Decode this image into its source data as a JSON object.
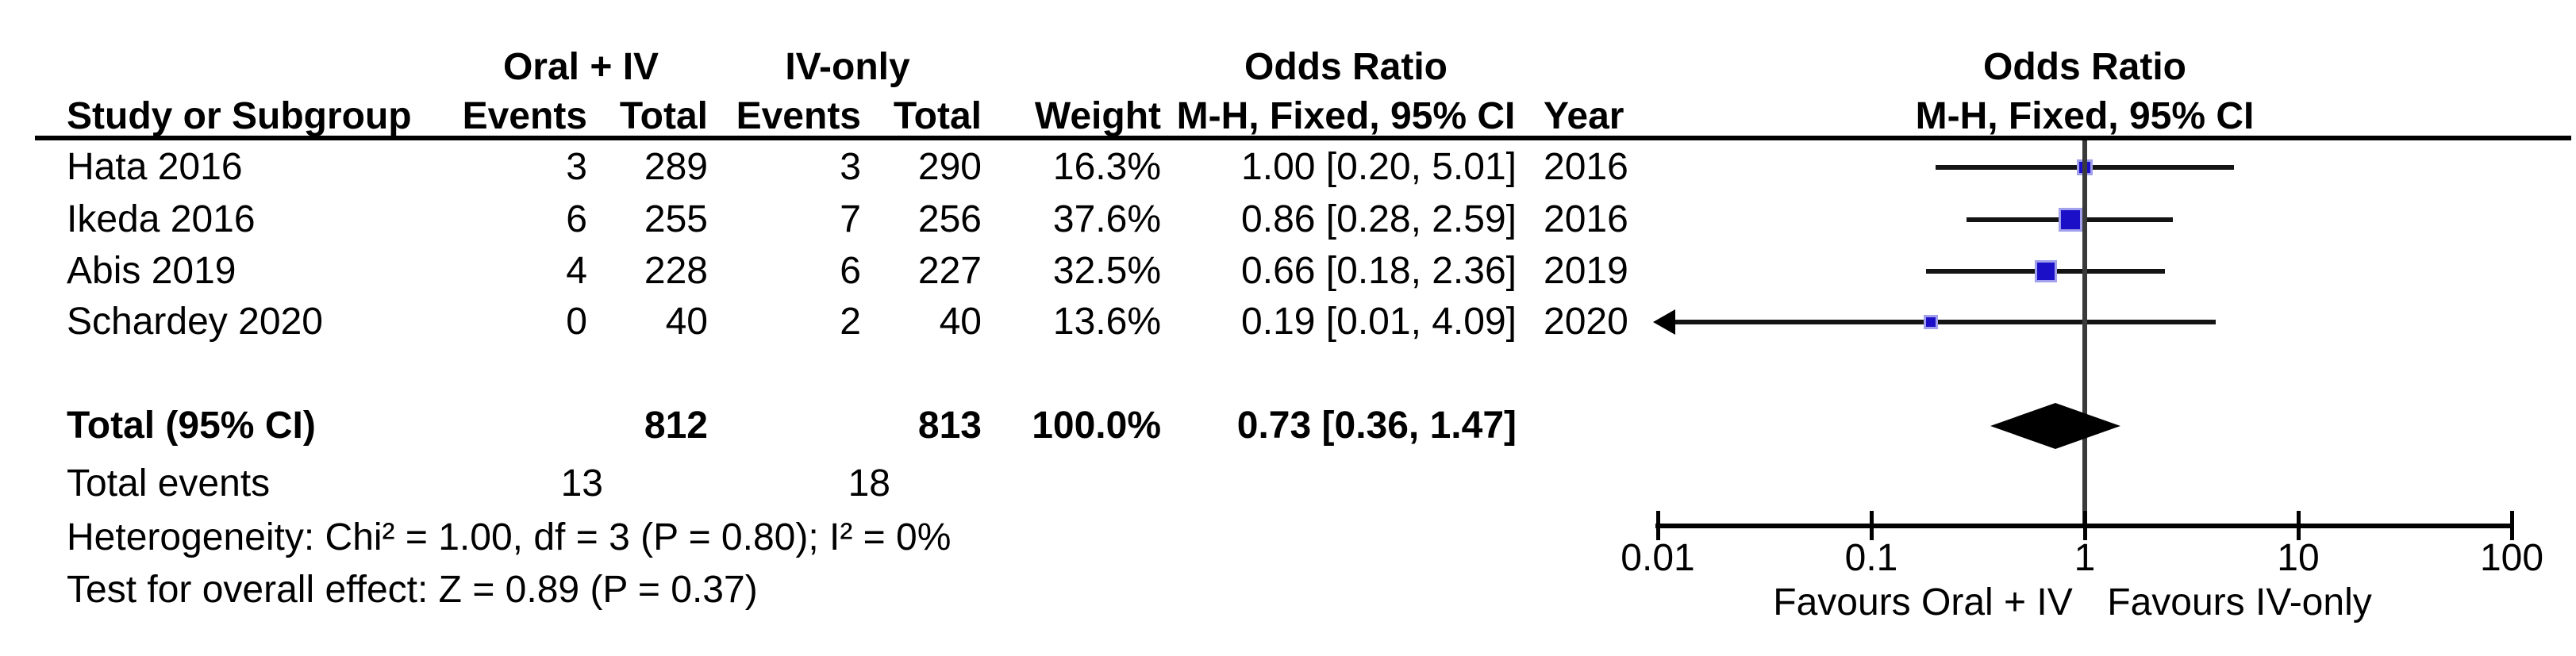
{
  "table": {
    "col_groups": {
      "group1": "Oral + IV",
      "group2": "IV-only",
      "or_header": "Odds Ratio"
    },
    "headers": {
      "study": "Study or Subgroup",
      "events": "Events",
      "total": "Total",
      "weight": "Weight",
      "mh": "M-H, Fixed, 95% CI",
      "year": "Year"
    },
    "total_events_label": "Total events"
  },
  "chart_data": {
    "type": "forest",
    "effect_measure": "Odds Ratio",
    "method": "M-H, Fixed, 95% CI",
    "x_scale": "log",
    "x_range": [
      0.01,
      100
    ],
    "x_ticks": [
      0.01,
      0.1,
      1,
      10,
      100
    ],
    "studies": [
      {
        "name": "Hata 2016",
        "events_exp": 3,
        "total_exp": 289,
        "events_ctrl": 3,
        "total_ctrl": 290,
        "weight_pct": 16.3,
        "weight_text": "16.3%",
        "or": 1.0,
        "ci_low": 0.2,
        "ci_high": 5.01,
        "or_ci_text": "1.00 [0.20, 5.01]",
        "year_text": "2016"
      },
      {
        "name": "Ikeda 2016",
        "events_exp": 6,
        "total_exp": 255,
        "events_ctrl": 7,
        "total_ctrl": 256,
        "weight_pct": 37.6,
        "weight_text": "37.6%",
        "or": 0.86,
        "ci_low": 0.28,
        "ci_high": 2.59,
        "or_ci_text": "0.86 [0.28, 2.59]",
        "year_text": "2016"
      },
      {
        "name": "Abis 2019",
        "events_exp": 4,
        "total_exp": 228,
        "events_ctrl": 6,
        "total_ctrl": 227,
        "weight_pct": 32.5,
        "weight_text": "32.5%",
        "or": 0.66,
        "ci_low": 0.18,
        "ci_high": 2.36,
        "or_ci_text": "0.66 [0.18, 2.36]",
        "year_text": "2019"
      },
      {
        "name": "Schardey 2020",
        "events_exp": 0,
        "total_exp": 40,
        "events_ctrl": 2,
        "total_ctrl": 40,
        "weight_pct": 13.6,
        "weight_text": "13.6%",
        "or": 0.19,
        "ci_low": 0.01,
        "ci_high": 4.09,
        "or_ci_text": "0.19 [0.01, 4.09]",
        "year_text": "2020"
      }
    ],
    "total": {
      "label": "Total (95% CI)",
      "total_exp": "812",
      "total_ctrl": "813",
      "weight_text": "100.0%",
      "or": 0.73,
      "ci_low": 0.36,
      "ci_high": 1.47,
      "or_ci_text": "0.73 [0.36, 1.47]",
      "total_events_exp": "13",
      "total_events_ctrl": "18"
    },
    "heterogeneity": "Heterogeneity: Chi² = 1.00, df = 3 (P = 0.80); I² = 0%",
    "overall_effect": "Test for overall effect: Z = 0.89 (P = 0.37)",
    "favours_left": "Favours Oral + IV",
    "favours_right": "Favours IV-only",
    "colors": {
      "square_fill": "#1b10c8",
      "square_border": "#a0a0ec",
      "diamond": "#000000",
      "ci_line": "#141414",
      "axis": "#000000"
    }
  }
}
